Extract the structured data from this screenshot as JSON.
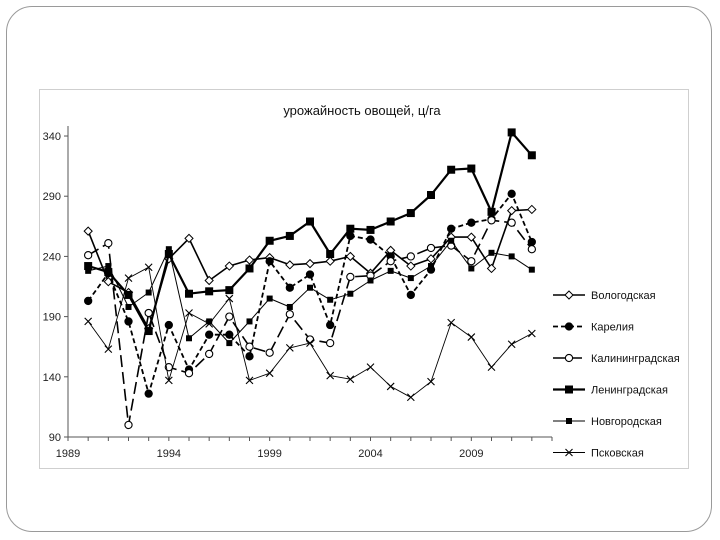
{
  "chart_data": {
    "type": "line",
    "title": "урожайность овощей, ц/га",
    "xlabel": "",
    "ylabel": "",
    "xlim": [
      1989,
      2013
    ],
    "ylim": [
      90,
      345
    ],
    "xticks": [
      "1989",
      "1994",
      "1999",
      "2004",
      "2009"
    ],
    "yticks": [
      "90",
      "140",
      "190",
      "240",
      "290",
      "340"
    ],
    "legend_position": "right",
    "grid": false,
    "x": [
      1990,
      1991,
      1992,
      1993,
      1994,
      1995,
      1996,
      1997,
      1998,
      1999,
      2000,
      2001,
      2002,
      2003,
      2004,
      2005,
      2006,
      2007,
      2008,
      2009,
      2010,
      2011,
      2012
    ],
    "series": [
      {
        "name": "Вологодская",
        "values": [
          261,
          219,
          210,
          180,
          238,
          255,
          220,
          232,
          237,
          239,
          233,
          234,
          236,
          240,
          226,
          245,
          232,
          238,
          256,
          256,
          230,
          278,
          279
        ]
      },
      {
        "name": "Карелия",
        "values": [
          203,
          226,
          186,
          126,
          183,
          146,
          175,
          175,
          157,
          236,
          214,
          225,
          183,
          257,
          254,
          240,
          208,
          229,
          263,
          268,
          271,
          292,
          252
        ]
      },
      {
        "name": "Калининградская",
        "values": [
          241,
          251,
          100,
          193,
          148,
          143,
          159,
          190,
          165,
          160,
          192,
          171,
          168,
          223,
          224,
          236,
          240,
          247,
          249,
          236,
          270,
          268,
          246
        ]
      },
      {
        "name": "Ленинградская",
        "values": [
          232,
          227,
          208,
          178,
          242,
          209,
          211,
          212,
          230,
          253,
          257,
          269,
          242,
          263,
          262,
          269,
          276,
          291,
          312,
          313,
          277,
          343,
          324
        ]
      },
      {
        "name": "Новгородская",
        "values": [
          228,
          232,
          198,
          210,
          246,
          172,
          186,
          168,
          186,
          205,
          198,
          214,
          204,
          209,
          220,
          228,
          222,
          232,
          253,
          230,
          243,
          240,
          229
        ]
      },
      {
        "name": "Псковская",
        "values": [
          186,
          163,
          222,
          231,
          137,
          193,
          184,
          205,
          137,
          143,
          164,
          168,
          141,
          138,
          148,
          132,
          123,
          136,
          185,
          173,
          148,
          167,
          176
        ]
      }
    ],
    "styles": [
      {
        "dash": "",
        "marker": "diamond",
        "fill": "#ffffff",
        "width": 1.6
      },
      {
        "dash": "5,3",
        "marker": "circle",
        "fill": "#000000",
        "width": 1.8
      },
      {
        "dash": "12,5",
        "marker": "circle",
        "fill": "#ffffff",
        "width": 1.6
      },
      {
        "dash": "",
        "marker": "square",
        "fill": "#000000",
        "width": 2.2
      },
      {
        "dash": "",
        "marker": "square-small",
        "fill": "#000000",
        "width": 1.0
      },
      {
        "dash": "",
        "marker": "x",
        "fill": "#000000",
        "width": 0.9
      }
    ]
  }
}
